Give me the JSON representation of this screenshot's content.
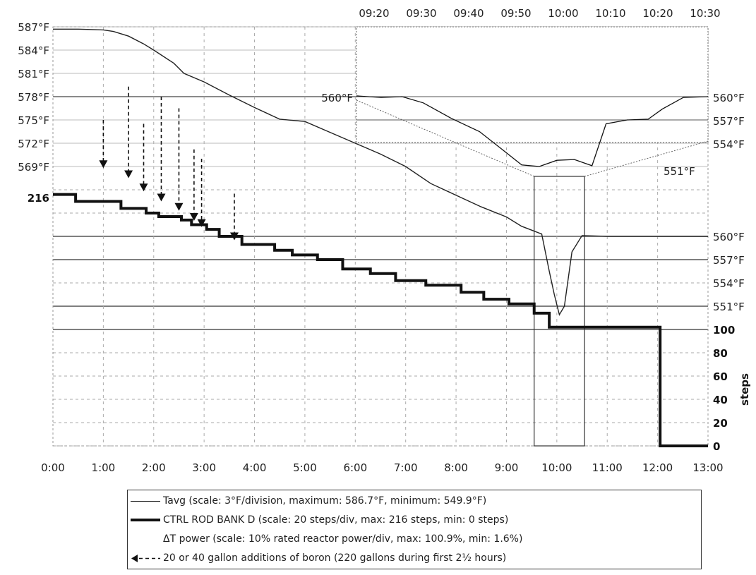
{
  "chart_data": {
    "type": "line",
    "x_labels": [
      "0:00",
      "1:00",
      "2:00",
      "3:00",
      "4:00",
      "5:00",
      "6:00",
      "7:00",
      "8:00",
      "9:00",
      "10:00",
      "11:00",
      "12:00",
      "13:00"
    ],
    "top_time_labels": [
      "09:20",
      "09:30",
      "09:40",
      "09:50",
      "10:00",
      "10:10",
      "10:20",
      "10:30"
    ],
    "tavg_labels": [
      "587°F",
      "584°F",
      "581°F",
      "578°F",
      "575°F",
      "572°F",
      "569°F"
    ],
    "tavg_lower_labels": [
      "560°F",
      "557°F",
      "554°F",
      "551°F"
    ],
    "inset_labels": {
      "left": "560°F",
      "right_top": "560°F",
      "right_557": "557°F",
      "right_554": "554°F",
      "bottom": "551°F"
    },
    "steps_labels": [
      "100",
      "80",
      "60",
      "40",
      "20",
      "0"
    ],
    "steps_axis_title": "steps",
    "rod_start_label": "216",
    "series": [
      {
        "name": "Tavg",
        "unit": "°F",
        "x": [
          0,
          0.5,
          1.0,
          1.2,
          1.5,
          1.8,
          2.0,
          2.4,
          2.6,
          3.0,
          3.5,
          4.0,
          4.5,
          5.0,
          5.5,
          6.0,
          6.5,
          7.0,
          7.5,
          8.0,
          8.5,
          9.0,
          9.3,
          9.5,
          9.7,
          9.85,
          9.95,
          10.05,
          10.15,
          10.3,
          10.5,
          11.0,
          11.5,
          12.0,
          13.0
        ],
        "values": [
          586.7,
          586.7,
          586.6,
          586.4,
          585.8,
          584.8,
          584.0,
          582.3,
          581.0,
          579.9,
          578.2,
          576.6,
          575.1,
          574.8,
          573.4,
          572.0,
          570.6,
          569.0,
          566.8,
          565.3,
          563.8,
          562.5,
          561.3,
          560.8,
          560.3,
          555.5,
          552.5,
          549.9,
          551.0,
          558.0,
          560.1,
          560.0,
          560.0,
          560.0,
          560.0
        ]
      },
      {
        "name": "CTRL ROD BANK D",
        "unit": "steps",
        "x": [
          0,
          0.45,
          0.45,
          1.35,
          1.35,
          1.85,
          1.85,
          2.1,
          2.1,
          2.55,
          2.55,
          2.75,
          2.75,
          3.05,
          3.05,
          3.3,
          3.3,
          3.75,
          3.75,
          4.4,
          4.4,
          4.75,
          4.75,
          5.25,
          5.25,
          5.75,
          5.75,
          6.3,
          6.3,
          6.8,
          6.8,
          7.4,
          7.4,
          8.1,
          8.1,
          8.55,
          8.55,
          9.05,
          9.05,
          9.55,
          9.55,
          9.85,
          9.85,
          12.05,
          12.05,
          13.0
        ],
        "values": [
          216,
          216,
          210,
          210,
          204,
          204,
          200,
          200,
          197,
          197,
          194,
          194,
          190,
          190,
          186,
          186,
          180,
          180,
          173,
          173,
          168,
          168,
          164,
          164,
          160,
          160,
          152,
          152,
          148,
          148,
          142,
          142,
          138,
          138,
          132,
          132,
          126,
          126,
          122,
          122,
          114,
          114,
          102,
          102,
          0,
          0
        ]
      }
    ],
    "boron_additions_x": [
      1.0,
      1.5,
      1.8,
      2.15,
      2.5,
      2.8,
      2.95,
      3.6
    ],
    "boron_arrow_tops": [
      575.0,
      579.3,
      574.5,
      578.0,
      576.5,
      571.2,
      570.0,
      565.5
    ],
    "boron_arrow_tips": [
      568.8,
      567.5,
      565.8,
      564.5,
      563.3,
      562.0,
      561.2,
      559.5
    ],
    "inset": {
      "time_start": "09:20",
      "time_end": "10:30",
      "ylim": [
        550,
        561
      ]
    },
    "legend": [
      {
        "key": "tavg",
        "text": "Tavg (scale:  3°F/division, maximum:  586.7°F, minimum:  549.9°F)"
      },
      {
        "key": "rod",
        "text": "CTRL ROD BANK D (scale:  20 steps/div, max:  216 steps, min:  0 steps)"
      },
      {
        "key": "dt",
        "text": "ΔT power (scale:  10% rated reactor power/div, max:  100.9%, min:  1.6%)"
      },
      {
        "key": "boron",
        "text": "20 or 40 gallon additions of boron (220 gallons during first 2½ hours)"
      }
    ],
    "grid": true
  }
}
